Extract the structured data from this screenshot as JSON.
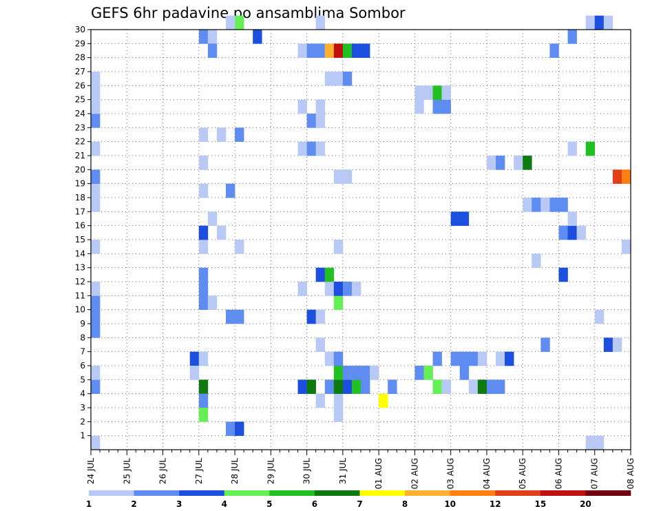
{
  "chart_data": {
    "type": "heatmap",
    "title": "GEFS 6hr padavine po ansamblima Sombor",
    "xlabel": "",
    "ylabel": "",
    "x_ticks": [
      "24 JUL",
      "25 JUL",
      "26 JUL",
      "27 JUL",
      "28 JUL",
      "29 JUL",
      "30 JUL",
      "31 JUL",
      "01 AUG",
      "02 AUG",
      "03 AUG",
      "04 AUG",
      "05 AUG",
      "06 AUG",
      "07 AUG",
      "08 AUG"
    ],
    "y_ticks": [
      "1",
      "2",
      "3",
      "4",
      "5",
      "6",
      "7",
      "8",
      "9",
      "10",
      "11",
      "12",
      "13",
      "14",
      "15",
      "16",
      "17",
      "18",
      "19",
      "20",
      "21",
      "22",
      "23",
      "24",
      "25",
      "26",
      "27",
      "28",
      "29",
      "30"
    ],
    "x_unit": "6-hour steps from 24 JUL 00Z",
    "xlim": [
      0,
      60
    ],
    "ylim": [
      0,
      30
    ],
    "grid": true,
    "colorbar": {
      "labels": [
        "1",
        "2",
        "3",
        "4",
        "5",
        "6",
        "7",
        "8",
        "10",
        "12",
        "15",
        "20"
      ],
      "colors": [
        "#b8c9f5",
        "#5f8cf0",
        "#1d4fde",
        "#66ee55",
        "#22c022",
        "#0e7a10",
        "#ffff00",
        "#ffb030",
        "#ff8010",
        "#e04018",
        "#c01010",
        "#700010"
      ]
    },
    "cells": [
      {
        "x": 0,
        "y": 0,
        "c": 0
      },
      {
        "x": 0,
        "y": 4,
        "c": 1
      },
      {
        "x": 0,
        "y": 5,
        "c": 0
      },
      {
        "x": 0,
        "y": 8,
        "c": 1
      },
      {
        "x": 0,
        "y": 9,
        "c": 1
      },
      {
        "x": 0,
        "y": 10,
        "c": 1
      },
      {
        "x": 0,
        "y": 11,
        "c": 0
      },
      {
        "x": 0,
        "y": 14,
        "c": 0
      },
      {
        "x": 0,
        "y": 17,
        "c": 0
      },
      {
        "x": 0,
        "y": 18,
        "c": 0
      },
      {
        "x": 0,
        "y": 19,
        "c": 1
      },
      {
        "x": 0,
        "y": 21,
        "c": 0
      },
      {
        "x": 0,
        "y": 23,
        "c": 1
      },
      {
        "x": 0,
        "y": 24,
        "c": 0
      },
      {
        "x": 0,
        "y": 25,
        "c": 0
      },
      {
        "x": 0,
        "y": 26,
        "c": 0
      },
      {
        "x": 11,
        "y": 6,
        "c": 2
      },
      {
        "x": 11,
        "y": 5,
        "c": 0
      },
      {
        "x": 12,
        "y": 6,
        "c": 0
      },
      {
        "x": 12,
        "y": 4,
        "c": 5
      },
      {
        "x": 12,
        "y": 3,
        "c": 1
      },
      {
        "x": 12,
        "y": 2,
        "c": 3
      },
      {
        "x": 12,
        "y": 11,
        "c": 1
      },
      {
        "x": 12,
        "y": 10,
        "c": 1
      },
      {
        "x": 13,
        "y": 10,
        "c": 0
      },
      {
        "x": 12,
        "y": 12,
        "c": 1
      },
      {
        "x": 12,
        "y": 14,
        "c": 0
      },
      {
        "x": 12,
        "y": 15,
        "c": 2
      },
      {
        "x": 13,
        "y": 16,
        "c": 0
      },
      {
        "x": 12,
        "y": 18,
        "c": 0
      },
      {
        "x": 12,
        "y": 20,
        "c": 0
      },
      {
        "x": 12,
        "y": 22,
        "c": 0
      },
      {
        "x": 14,
        "y": 22,
        "c": 0
      },
      {
        "x": 12,
        "y": 29,
        "c": 1
      },
      {
        "x": 13,
        "y": 29,
        "c": 0
      },
      {
        "x": 13,
        "y": 28,
        "c": 1
      },
      {
        "x": 14,
        "y": 15,
        "c": 0
      },
      {
        "x": 15,
        "y": 18,
        "c": 1
      },
      {
        "x": 15,
        "y": 9,
        "c": 1
      },
      {
        "x": 16,
        "y": 9,
        "c": 1
      },
      {
        "x": 15,
        "y": 1,
        "c": 1
      },
      {
        "x": 16,
        "y": 1,
        "c": 2
      },
      {
        "x": 16,
        "y": 22,
        "c": 1
      },
      {
        "x": 16,
        "y": 14,
        "c": 0
      },
      {
        "x": 16,
        "y": 30,
        "c": 3
      },
      {
        "x": 15,
        "y": 30,
        "c": 0
      },
      {
        "x": 18,
        "y": 29,
        "c": 2
      },
      {
        "x": 23,
        "y": 28,
        "c": 0
      },
      {
        "x": 23,
        "y": 21,
        "c": 0
      },
      {
        "x": 23,
        "y": 24,
        "c": 0
      },
      {
        "x": 23,
        "y": 11,
        "c": 0
      },
      {
        "x": 23,
        "y": 4,
        "c": 2
      },
      {
        "x": 24,
        "y": 4,
        "c": 5
      },
      {
        "x": 24,
        "y": 9,
        "c": 2
      },
      {
        "x": 24,
        "y": 21,
        "c": 1
      },
      {
        "x": 24,
        "y": 23,
        "c": 1
      },
      {
        "x": 24,
        "y": 28,
        "c": 1
      },
      {
        "x": 25,
        "y": 3,
        "c": 0
      },
      {
        "x": 25,
        "y": 7,
        "c": 0
      },
      {
        "x": 25,
        "y": 9,
        "c": 0
      },
      {
        "x": 25,
        "y": 12,
        "c": 2
      },
      {
        "x": 25,
        "y": 21,
        "c": 0
      },
      {
        "x": 25,
        "y": 23,
        "c": 0
      },
      {
        "x": 25,
        "y": 24,
        "c": 0
      },
      {
        "x": 25,
        "y": 28,
        "c": 1
      },
      {
        "x": 25,
        "y": 30,
        "c": 0
      },
      {
        "x": 26,
        "y": 4,
        "c": 1
      },
      {
        "x": 26,
        "y": 6,
        "c": 0
      },
      {
        "x": 26,
        "y": 11,
        "c": 0
      },
      {
        "x": 26,
        "y": 12,
        "c": 4
      },
      {
        "x": 26,
        "y": 26,
        "c": 0
      },
      {
        "x": 26,
        "y": 28,
        "c": 7
      },
      {
        "x": 27,
        "y": 2,
        "c": 0
      },
      {
        "x": 27,
        "y": 3,
        "c": 0
      },
      {
        "x": 27,
        "y": 4,
        "c": 5
      },
      {
        "x": 27,
        "y": 5,
        "c": 4
      },
      {
        "x": 27,
        "y": 6,
        "c": 1
      },
      {
        "x": 27,
        "y": 10,
        "c": 3
      },
      {
        "x": 27,
        "y": 11,
        "c": 2
      },
      {
        "x": 27,
        "y": 14,
        "c": 0
      },
      {
        "x": 27,
        "y": 19,
        "c": 0
      },
      {
        "x": 27,
        "y": 26,
        "c": 0
      },
      {
        "x": 27,
        "y": 28,
        "c": 10
      },
      {
        "x": 28,
        "y": 4,
        "c": 2
      },
      {
        "x": 28,
        "y": 5,
        "c": 1
      },
      {
        "x": 28,
        "y": 11,
        "c": 1
      },
      {
        "x": 28,
        "y": 19,
        "c": 0
      },
      {
        "x": 28,
        "y": 26,
        "c": 1
      },
      {
        "x": 28,
        "y": 28,
        "c": 4
      },
      {
        "x": 29,
        "y": 4,
        "c": 4
      },
      {
        "x": 29,
        "y": 5,
        "c": 1
      },
      {
        "x": 29,
        "y": 11,
        "c": 0
      },
      {
        "x": 29,
        "y": 28,
        "c": 2
      },
      {
        "x": 30,
        "y": 4,
        "c": 1
      },
      {
        "x": 30,
        "y": 5,
        "c": 1
      },
      {
        "x": 30,
        "y": 28,
        "c": 2
      },
      {
        "x": 31,
        "y": 5,
        "c": 0
      },
      {
        "x": 32,
        "y": 3,
        "c": 6
      },
      {
        "x": 33,
        "y": 4,
        "c": 1
      },
      {
        "x": 36,
        "y": 24,
        "c": 0
      },
      {
        "x": 36,
        "y": 25,
        "c": 0
      },
      {
        "x": 37,
        "y": 25,
        "c": 0
      },
      {
        "x": 36,
        "y": 5,
        "c": 1
      },
      {
        "x": 37,
        "y": 5,
        "c": 3
      },
      {
        "x": 38,
        "y": 4,
        "c": 3
      },
      {
        "x": 38,
        "y": 6,
        "c": 1
      },
      {
        "x": 38,
        "y": 24,
        "c": 1
      },
      {
        "x": 38,
        "y": 25,
        "c": 4
      },
      {
        "x": 39,
        "y": 4,
        "c": 0
      },
      {
        "x": 39,
        "y": 24,
        "c": 1
      },
      {
        "x": 39,
        "y": 25,
        "c": 0
      },
      {
        "x": 40,
        "y": 6,
        "c": 1
      },
      {
        "x": 40,
        "y": 16,
        "c": 2
      },
      {
        "x": 41,
        "y": 6,
        "c": 1
      },
      {
        "x": 41,
        "y": 16,
        "c": 2
      },
      {
        "x": 41,
        "y": 5,
        "c": 1
      },
      {
        "x": 42,
        "y": 6,
        "c": 1
      },
      {
        "x": 42,
        "y": 4,
        "c": 0
      },
      {
        "x": 43,
        "y": 4,
        "c": 5
      },
      {
        "x": 43,
        "y": 6,
        "c": 0
      },
      {
        "x": 44,
        "y": 4,
        "c": 1
      },
      {
        "x": 45,
        "y": 4,
        "c": 1
      },
      {
        "x": 44,
        "y": 20,
        "c": 0
      },
      {
        "x": 45,
        "y": 20,
        "c": 1
      },
      {
        "x": 45,
        "y": 6,
        "c": 0
      },
      {
        "x": 46,
        "y": 6,
        "c": 2
      },
      {
        "x": 47,
        "y": 20,
        "c": 0
      },
      {
        "x": 48,
        "y": 20,
        "c": 5
      },
      {
        "x": 48,
        "y": 17,
        "c": 0
      },
      {
        "x": 49,
        "y": 17,
        "c": 1
      },
      {
        "x": 49,
        "y": 13,
        "c": 0
      },
      {
        "x": 50,
        "y": 7,
        "c": 1
      },
      {
        "x": 50,
        "y": 17,
        "c": 0
      },
      {
        "x": 51,
        "y": 17,
        "c": 1
      },
      {
        "x": 52,
        "y": 17,
        "c": 1
      },
      {
        "x": 51,
        "y": 28,
        "c": 1
      },
      {
        "x": 52,
        "y": 12,
        "c": 2
      },
      {
        "x": 52,
        "y": 15,
        "c": 1
      },
      {
        "x": 53,
        "y": 15,
        "c": 2
      },
      {
        "x": 53,
        "y": 16,
        "c": 0
      },
      {
        "x": 54,
        "y": 15,
        "c": 0
      },
      {
        "x": 53,
        "y": 21,
        "c": 0
      },
      {
        "x": 53,
        "y": 29,
        "c": 1
      },
      {
        "x": 55,
        "y": 21,
        "c": 4
      },
      {
        "x": 55,
        "y": 0,
        "c": 0
      },
      {
        "x": 56,
        "y": 0,
        "c": 0
      },
      {
        "x": 55,
        "y": 30,
        "c": 0
      },
      {
        "x": 56,
        "y": 30,
        "c": 2
      },
      {
        "x": 57,
        "y": 30,
        "c": 0
      },
      {
        "x": 56,
        "y": 9,
        "c": 0
      },
      {
        "x": 57,
        "y": 7,
        "c": 2
      },
      {
        "x": 58,
        "y": 7,
        "c": 0
      },
      {
        "x": 59,
        "y": 14,
        "c": 0
      },
      {
        "x": 58,
        "y": 19,
        "c": 9
      },
      {
        "x": 59,
        "y": 19,
        "c": 8
      }
    ]
  }
}
